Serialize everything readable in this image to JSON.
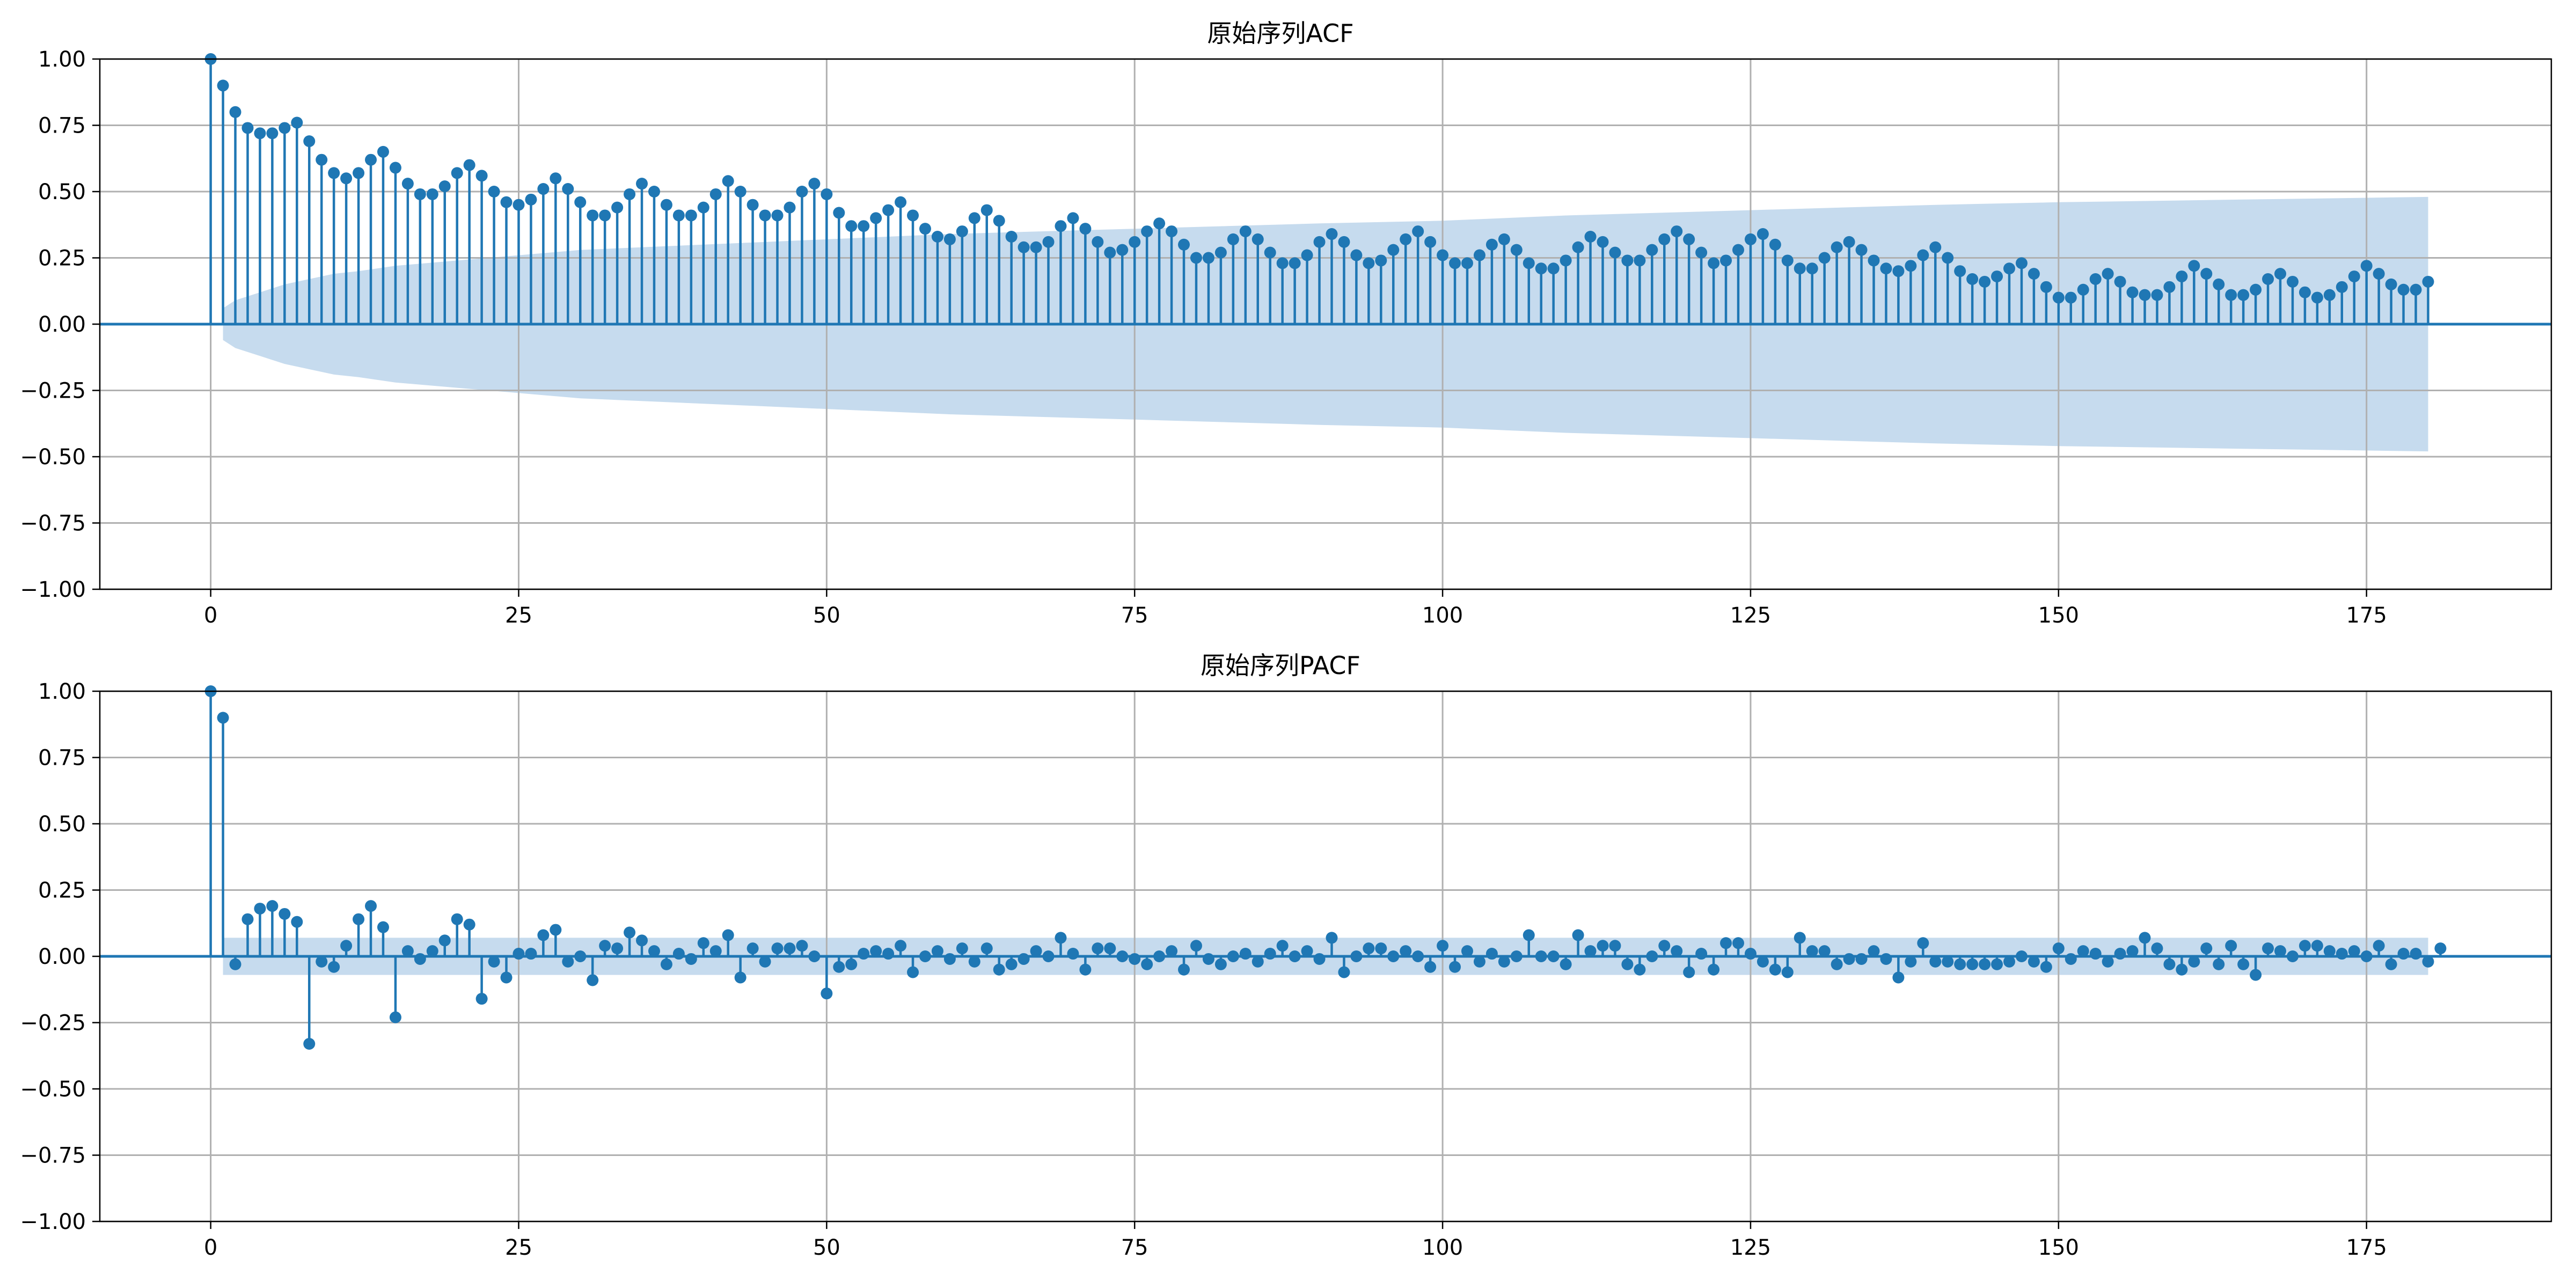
{
  "colors": {
    "series": "#1f77b4",
    "confidence_band": "#c6dbee",
    "grid": "#b0b0b0",
    "axes": "#000000",
    "background": "#ffffff"
  },
  "chart_data": [
    {
      "id": "acf",
      "type": "stem",
      "title": "原始序列ACF",
      "xlabel": "",
      "ylabel": "",
      "xlim": [
        -9,
        190
      ],
      "ylim": [
        -1.0,
        1.0
      ],
      "xticks": [
        0,
        25,
        50,
        75,
        100,
        125,
        150,
        175
      ],
      "xtick_labels": [
        "0",
        "25",
        "50",
        "75",
        "100",
        "125",
        "150",
        "175"
      ],
      "yticks": [
        -1.0,
        -0.75,
        -0.5,
        -0.25,
        0.0,
        0.25,
        0.5,
        0.75,
        1.0
      ],
      "ytick_labels": [
        "−1.00",
        "−0.75",
        "−0.50",
        "−0.25",
        "0.00",
        "0.25",
        "0.50",
        "0.75",
        "1.00"
      ],
      "grid": true,
      "confidence_band": {
        "lags": [
          1,
          2,
          4,
          6,
          8,
          10,
          12,
          15,
          20,
          25,
          30,
          40,
          50,
          60,
          75,
          90,
          100,
          110,
          125,
          140,
          150,
          165,
          180
        ],
        "upper": [
          0.06,
          0.09,
          0.12,
          0.15,
          0.17,
          0.19,
          0.2,
          0.22,
          0.24,
          0.26,
          0.28,
          0.3,
          0.32,
          0.34,
          0.36,
          0.38,
          0.39,
          0.41,
          0.43,
          0.45,
          0.46,
          0.47,
          0.48
        ],
        "lower": [
          -0.06,
          -0.09,
          -0.12,
          -0.15,
          -0.17,
          -0.19,
          -0.2,
          -0.22,
          -0.24,
          -0.26,
          -0.28,
          -0.3,
          -0.32,
          -0.34,
          -0.36,
          -0.38,
          -0.39,
          -0.41,
          -0.43,
          -0.45,
          -0.46,
          -0.47,
          -0.48
        ]
      },
      "values": [
        1.0,
        0.9,
        0.8,
        0.74,
        0.72,
        0.72,
        0.74,
        0.76,
        0.69,
        0.62,
        0.57,
        0.55,
        0.57,
        0.62,
        0.65,
        0.59,
        0.53,
        0.49,
        0.49,
        0.52,
        0.57,
        0.6,
        0.56,
        0.5,
        0.46,
        0.45,
        0.47,
        0.51,
        0.55,
        0.51,
        0.46,
        0.41,
        0.41,
        0.44,
        0.49,
        0.53,
        0.5,
        0.45,
        0.41,
        0.41,
        0.44,
        0.49,
        0.54,
        0.5,
        0.45,
        0.41,
        0.41,
        0.44,
        0.5,
        0.53,
        0.49,
        0.42,
        0.37,
        0.37,
        0.4,
        0.43,
        0.46,
        0.41,
        0.36,
        0.33,
        0.32,
        0.35,
        0.4,
        0.43,
        0.39,
        0.33,
        0.29,
        0.29,
        0.31,
        0.37,
        0.4,
        0.36,
        0.31,
        0.27,
        0.28,
        0.31,
        0.35,
        0.38,
        0.35,
        0.3,
        0.25,
        0.25,
        0.27,
        0.32,
        0.35,
        0.32,
        0.27,
        0.23,
        0.23,
        0.26,
        0.31,
        0.34,
        0.31,
        0.26,
        0.23,
        0.24,
        0.28,
        0.32,
        0.35,
        0.31,
        0.26,
        0.23,
        0.23,
        0.26,
        0.3,
        0.32,
        0.28,
        0.23,
        0.21,
        0.21,
        0.24,
        0.29,
        0.33,
        0.31,
        0.27,
        0.24,
        0.24,
        0.28,
        0.32,
        0.35,
        0.32,
        0.27,
        0.23,
        0.24,
        0.28,
        0.32,
        0.34,
        0.3,
        0.24,
        0.21,
        0.21,
        0.25,
        0.29,
        0.31,
        0.28,
        0.24,
        0.21,
        0.2,
        0.22,
        0.26,
        0.29,
        0.25,
        0.2,
        0.17,
        0.16,
        0.18,
        0.21,
        0.23,
        0.19,
        0.14,
        0.1,
        0.1,
        0.13,
        0.17,
        0.19,
        0.16,
        0.12,
        0.11,
        0.11,
        0.14,
        0.18,
        0.22,
        0.19,
        0.15,
        0.11,
        0.11,
        0.13,
        0.17,
        0.19,
        0.16,
        0.12,
        0.1,
        0.11,
        0.14,
        0.18,
        0.22,
        0.19,
        0.15,
        0.13,
        0.13,
        0.16
      ]
    },
    {
      "id": "pacf",
      "type": "stem",
      "title": "原始序列PACF",
      "xlabel": "",
      "ylabel": "",
      "xlim": [
        -9,
        190
      ],
      "ylim": [
        -1.0,
        1.0
      ],
      "xticks": [
        0,
        25,
        50,
        75,
        100,
        125,
        150,
        175
      ],
      "xtick_labels": [
        "0",
        "25",
        "50",
        "75",
        "100",
        "125",
        "150",
        "175"
      ],
      "yticks": [
        -1.0,
        -0.75,
        -0.5,
        -0.25,
        0.0,
        0.25,
        0.5,
        0.75,
        1.0
      ],
      "ytick_labels": [
        "−1.00",
        "−0.75",
        "−0.50",
        "−0.25",
        "0.00",
        "0.25",
        "0.50",
        "0.75",
        "1.00"
      ],
      "grid": true,
      "confidence_band": {
        "lags": [
          1,
          180
        ],
        "upper": [
          0.07,
          0.07
        ],
        "lower": [
          -0.07,
          -0.07
        ]
      },
      "values": [
        1.0,
        0.9,
        -0.03,
        0.14,
        0.18,
        0.19,
        0.16,
        0.13,
        -0.33,
        -0.02,
        -0.04,
        0.04,
        0.14,
        0.19,
        0.11,
        -0.23,
        0.02,
        -0.01,
        0.02,
        0.06,
        0.14,
        0.12,
        -0.16,
        -0.02,
        -0.08,
        0.01,
        0.01,
        0.08,
        0.1,
        -0.02,
        0.0,
        -0.09,
        0.04,
        0.03,
        0.09,
        0.06,
        0.02,
        -0.03,
        0.01,
        -0.01,
        0.05,
        0.02,
        0.08,
        -0.08,
        0.03,
        -0.02,
        0.03,
        0.03,
        0.04,
        0.0,
        -0.14,
        -0.04,
        -0.03,
        0.01,
        0.02,
        0.01,
        0.04,
        -0.06,
        0.0,
        0.02,
        -0.01,
        0.03,
        -0.02,
        0.03,
        -0.05,
        -0.03,
        -0.01,
        0.02,
        0.0,
        0.07,
        0.01,
        -0.05,
        0.03,
        0.03,
        0.0,
        -0.01,
        -0.03,
        0.0,
        0.02,
        -0.05,
        0.04,
        -0.01,
        -0.03,
        0.0,
        0.01,
        -0.02,
        0.01,
        0.04,
        0.0,
        0.02,
        -0.01,
        0.07,
        -0.06,
        0.0,
        0.03,
        0.03,
        0.0,
        0.02,
        0.0,
        -0.04,
        0.04,
        -0.04,
        0.02,
        -0.02,
        0.01,
        -0.02,
        0.0,
        0.08,
        0.0,
        0.0,
        -0.03,
        0.08,
        0.02,
        0.04,
        0.04,
        -0.03,
        -0.05,
        0.0,
        0.04,
        0.02,
        -0.06,
        0.01,
        -0.05,
        0.05,
        0.05,
        0.01,
        -0.02,
        -0.05,
        -0.06,
        0.07,
        0.02,
        0.02,
        -0.03,
        -0.01,
        -0.01,
        0.02,
        -0.01,
        -0.08,
        -0.02,
        0.05,
        -0.02,
        -0.02,
        -0.03,
        -0.03,
        -0.03,
        -0.03,
        -0.02,
        0.0,
        -0.02,
        -0.04,
        0.03,
        -0.01,
        0.02,
        0.01,
        -0.02,
        0.01,
        0.02,
        0.07,
        0.03,
        -0.03,
        -0.05,
        -0.02,
        0.03,
        -0.03,
        0.04,
        -0.03,
        -0.07,
        0.03,
        0.02,
        0.0,
        0.04,
        0.04,
        0.02,
        0.01,
        0.02,
        0.0,
        0.04,
        -0.03,
        0.01,
        0.01,
        -0.02,
        0.03
      ]
    }
  ]
}
